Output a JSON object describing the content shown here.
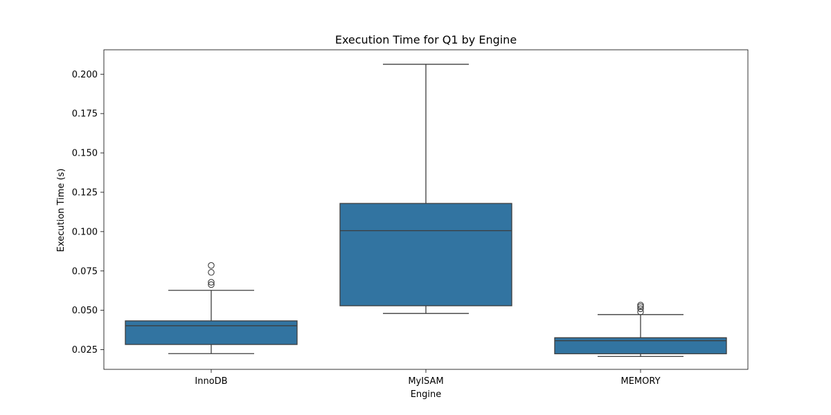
{
  "chart_data": {
    "type": "box",
    "title": "Execution Time for Q1 by Engine",
    "xlabel": "Engine",
    "ylabel": "Execution Time (s)",
    "ylim": [
      0.0125,
      0.2155
    ],
    "yticks": [
      0.025,
      0.05,
      0.075,
      0.1,
      0.125,
      0.15,
      0.175,
      0.2
    ],
    "yticks_labels": [
      "0.025",
      "0.050",
      "0.075",
      "0.100",
      "0.125",
      "0.150",
      "0.175",
      "0.200"
    ],
    "categories": [
      "InnoDB",
      "MyISAM",
      "MEMORY"
    ],
    "boxes": [
      {
        "category": "InnoDB",
        "whisker_low": 0.0225,
        "q1": 0.0283,
        "median": 0.0402,
        "q3": 0.0433,
        "whisker_high": 0.0627,
        "outliers": [
          0.0663,
          0.0678,
          0.0741,
          0.0785
        ]
      },
      {
        "category": "MyISAM",
        "whisker_low": 0.048,
        "q1": 0.0529,
        "median": 0.1006,
        "q3": 0.1179,
        "whisker_high": 0.2063,
        "outliers": []
      },
      {
        "category": "MEMORY",
        "whisker_low": 0.0207,
        "q1": 0.0224,
        "median": 0.0307,
        "q3": 0.0326,
        "whisker_high": 0.0473,
        "outliers": [
          0.049,
          0.051,
          0.0523,
          0.0533
        ]
      }
    ],
    "colors": {
      "box": "#3274a1",
      "line": "#3d3d3d"
    },
    "grid": false,
    "legend": "none"
  }
}
